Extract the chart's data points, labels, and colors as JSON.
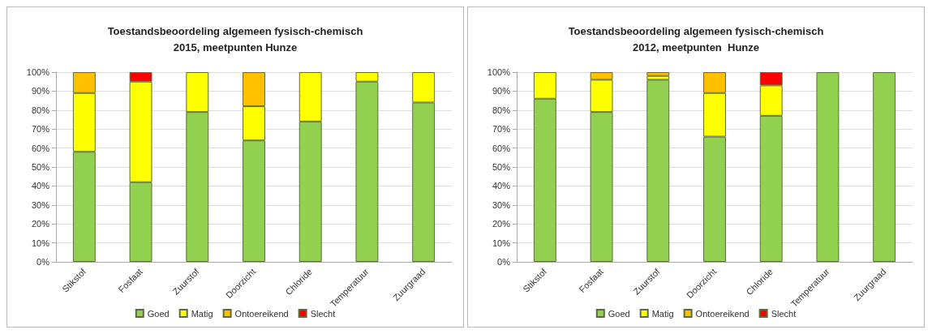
{
  "chart_data": [
    {
      "type": "bar",
      "title": "Toestandsbeoordeling algemeen fysisch-chemisch\n2015, meetpunten Hunze",
      "categories": [
        "Stikstof",
        "Fosfaat",
        "Zuurstof",
        "Doorzicht",
        "Chloride",
        "Temperatuur",
        "Zuurgraad"
      ],
      "stacked": true,
      "ylim": [
        0,
        100
      ],
      "yticks": [
        {
          "value": 0,
          "label": "0%"
        },
        {
          "value": 10,
          "label": "10%"
        },
        {
          "value": 20,
          "label": "20%"
        },
        {
          "value": 30,
          "label": "30%"
        },
        {
          "value": 40,
          "label": "40%"
        },
        {
          "value": 50,
          "label": "50%"
        },
        {
          "value": 60,
          "label": "60%"
        },
        {
          "value": 70,
          "label": "70%"
        },
        {
          "value": 80,
          "label": "80%"
        },
        {
          "value": 90,
          "label": "90%"
        },
        {
          "value": 100,
          "label": "100%"
        }
      ],
      "grid": "y",
      "legend": "bottom",
      "series": [
        {
          "name": "Goed",
          "color": "#92d050",
          "values": [
            58,
            42,
            79,
            64,
            74,
            95,
            84
          ]
        },
        {
          "name": "Matig",
          "color": "#ffff00",
          "values": [
            31,
            53,
            21,
            18,
            26,
            5,
            16
          ]
        },
        {
          "name": "Ontoereikend",
          "color": "#ffc000",
          "values": [
            11,
            null,
            null,
            18,
            null,
            null,
            null
          ]
        },
        {
          "name": "Slecht",
          "color": "#ff0000",
          "values": [
            null,
            5,
            null,
            null,
            null,
            null,
            null
          ]
        }
      ]
    },
    {
      "type": "bar",
      "title": "Toestandsbeoordeling algemeen fysisch-chemisch\n2012, meetpunten  Hunze",
      "categories": [
        "Stikstof",
        "Fosfaat",
        "Zuurstof",
        "Doorzicht",
        "Chloride",
        "Temperatuur",
        "Zuurgraad"
      ],
      "stacked": true,
      "ylim": [
        0,
        100
      ],
      "yticks": [
        {
          "value": 0,
          "label": "0%"
        },
        {
          "value": 10,
          "label": "10%"
        },
        {
          "value": 20,
          "label": "20%"
        },
        {
          "value": 30,
          "label": "30%"
        },
        {
          "value": 40,
          "label": "40%"
        },
        {
          "value": 50,
          "label": "50%"
        },
        {
          "value": 60,
          "label": "60%"
        },
        {
          "value": 70,
          "label": "70%"
        },
        {
          "value": 80,
          "label": "80%"
        },
        {
          "value": 90,
          "label": "90%"
        },
        {
          "value": 100,
          "label": "100%"
        }
      ],
      "grid": "y",
      "legend": "bottom",
      "series": [
        {
          "name": "Goed",
          "color": "#92d050",
          "values": [
            86,
            79,
            96,
            66,
            77,
            100,
            100
          ]
        },
        {
          "name": "Matig",
          "color": "#ffff00",
          "values": [
            14,
            17,
            2,
            23,
            16,
            null,
            null
          ]
        },
        {
          "name": "Ontoereikend",
          "color": "#ffc000",
          "values": [
            null,
            4,
            2,
            11,
            null,
            null,
            null
          ]
        },
        {
          "name": "Slecht",
          "color": "#ff0000",
          "values": [
            null,
            null,
            null,
            null,
            7,
            null,
            null
          ]
        }
      ]
    }
  ]
}
